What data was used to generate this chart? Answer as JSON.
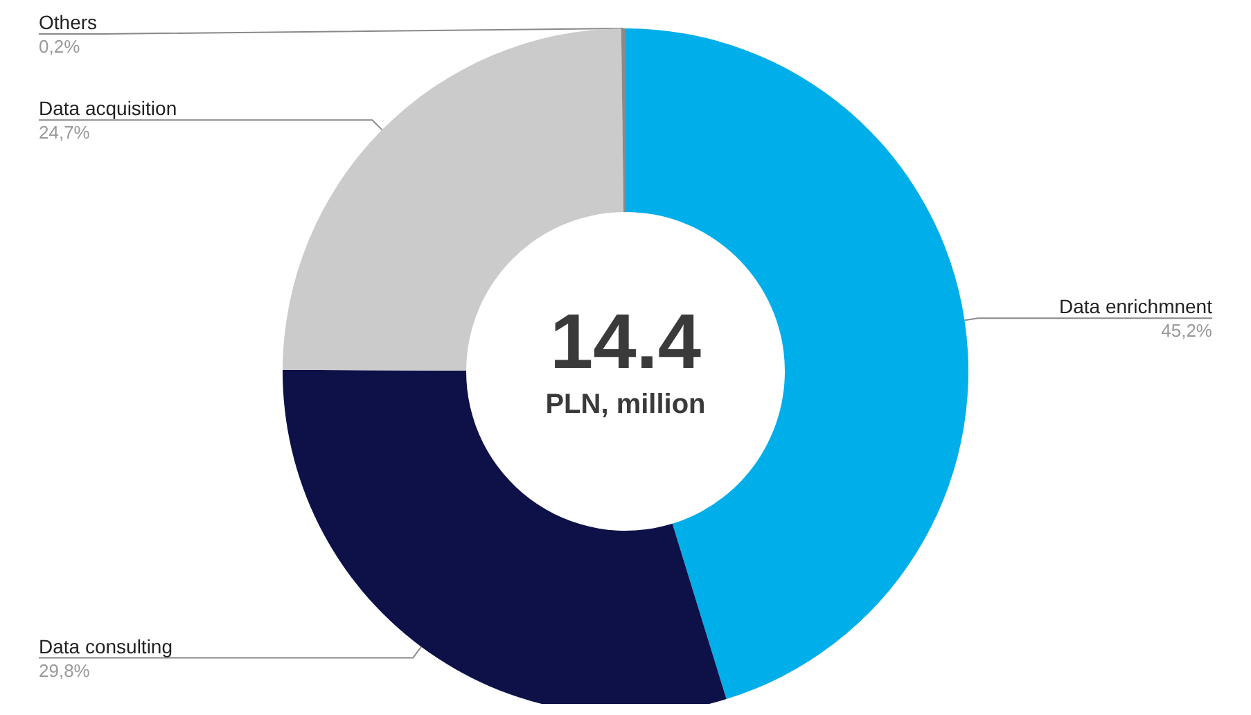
{
  "chart_data": {
    "type": "donut",
    "title": "14.4",
    "subtitle": "PLN, million",
    "categories": [
      "Data enrichmnent",
      "Data consulting",
      "Data acquisition",
      "Others"
    ],
    "values": [
      45.2,
      29.8,
      24.7,
      0.2
    ],
    "value_labels": [
      "45,2%",
      "29,8%",
      "24,7%",
      "0,2%"
    ],
    "colors": [
      "#00aeea",
      "#0d1148",
      "#cbcbcb",
      "#8a8a8a"
    ],
    "legend": false
  }
}
